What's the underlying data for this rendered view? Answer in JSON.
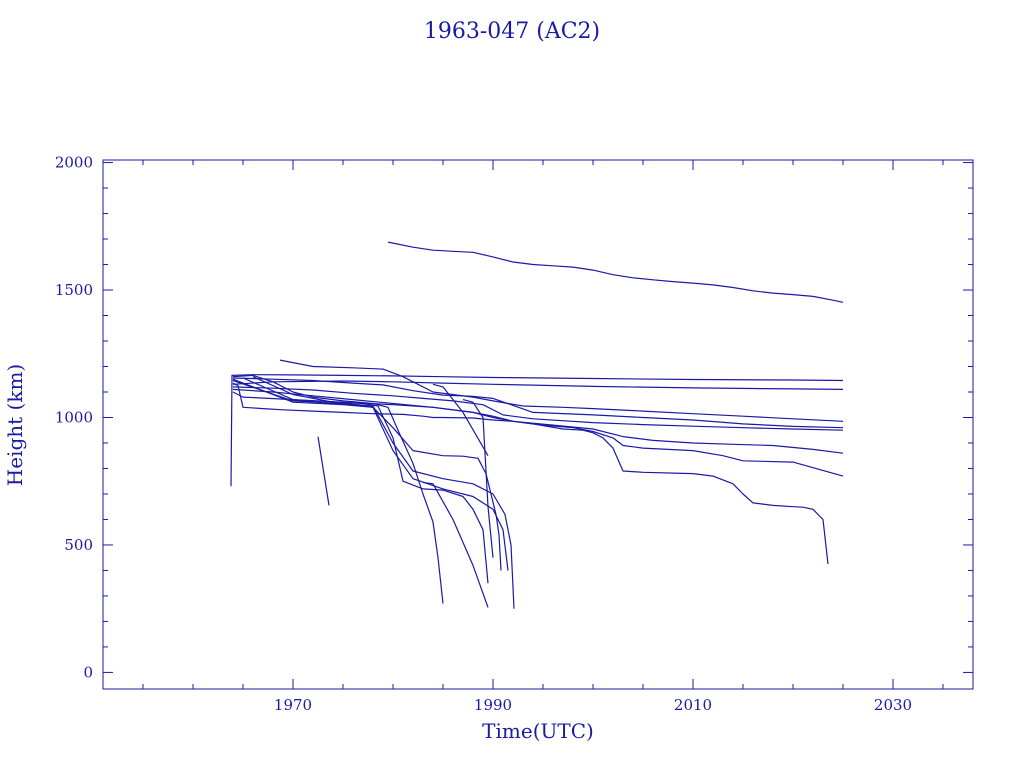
{
  "chart_data": {
    "type": "line",
    "title": "1963-047 (AC2)",
    "xlabel": "Time(UTC)",
    "ylabel": "Height (km)",
    "xlim": [
      1951,
      2038
    ],
    "ylim": [
      -65,
      2010
    ],
    "xticks": [
      1970,
      1990,
      2010,
      2030
    ],
    "yticks": [
      0,
      500,
      1000,
      1500,
      2000
    ],
    "x_minor_step": 5,
    "y_minor_step": 100,
    "grid": false,
    "line_color": "#1a1aa6",
    "series": [
      {
        "x": [
          1979.5,
          1980,
          1982,
          1984,
          1986,
          1988,
          1990,
          1992,
          1994,
          1996,
          1998,
          2000,
          2002,
          2004,
          2006,
          2008,
          2010,
          2012,
          2014,
          2016,
          2018,
          2020,
          2022,
          2024,
          2025
        ],
        "y": [
          1688,
          1684,
          1668,
          1656,
          1652,
          1648,
          1630,
          1610,
          1600,
          1595,
          1590,
          1578,
          1560,
          1548,
          1540,
          1533,
          1527,
          1520,
          1510,
          1497,
          1488,
          1482,
          1475,
          1460,
          1452
        ]
      },
      {
        "x": [
          1963.8,
          1963.9,
          1966,
          1970,
          1975,
          1980,
          1985,
          1990,
          2000,
          2010,
          2020,
          2025
        ],
        "y": [
          730,
          1165,
          1168,
          1167,
          1165,
          1163,
          1160,
          1157,
          1153,
          1149,
          1147,
          1145
        ]
      },
      {
        "x": [
          1964,
          1968,
          1975,
          1980,
          1985,
          1990,
          2000,
          2010,
          2020,
          2025
        ],
        "y": [
          1130,
          1140,
          1143,
          1140,
          1135,
          1130,
          1122,
          1116,
          1112,
          1110
        ]
      },
      {
        "x": [
          1968.7,
          1972,
          1976,
          1979,
          1981,
          1984,
          1988,
          1990,
          1993,
          1997,
          2000,
          2005,
          2010,
          2015,
          2020,
          2025
        ],
        "y": [
          1225,
          1200,
          1195,
          1190,
          1160,
          1100,
          1080,
          1065,
          1045,
          1040,
          1035,
          1025,
          1015,
          1005,
          995,
          985
        ]
      },
      {
        "x": [
          1964,
          1968,
          1972,
          1976,
          1979,
          1982,
          1985,
          1988,
          1990,
          1994,
          2000,
          2005,
          2010,
          2015,
          2020,
          2025
        ],
        "y": [
          1155,
          1150,
          1145,
          1135,
          1128,
          1105,
          1088,
          1083,
          1075,
          1020,
          1010,
          1000,
          990,
          975,
          965,
          960
        ]
      },
      {
        "x": [
          1964,
          1968,
          1972,
          1976,
          1980,
          1983,
          1986,
          1989,
          1991,
          1994,
          2000,
          2005,
          2010,
          2015,
          2020,
          2025
        ],
        "y": [
          1120,
          1115,
          1108,
          1095,
          1085,
          1075,
          1065,
          1050,
          1010,
          995,
          980,
          972,
          966,
          960,
          955,
          950
        ]
      },
      {
        "x": [
          1964,
          1968,
          1972,
          1976,
          1980,
          1984,
          1988,
          1990,
          1992,
          1996,
          2000,
          2003,
          2006,
          2010,
          2014,
          2018,
          2022,
          2025
        ],
        "y": [
          1110,
          1100,
          1085,
          1070,
          1055,
          1040,
          1020,
          1005,
          985,
          970,
          955,
          925,
          910,
          900,
          895,
          890,
          875,
          860
        ]
      },
      {
        "x": [
          1964,
          1965,
          1970,
          1975,
          1980,
          1984,
          1988,
          1990,
          1992,
          1995,
          1998,
          2000,
          2002,
          2003,
          2005,
          2010,
          2013,
          2015,
          2020,
          2025
        ],
        "y": [
          1100,
          1080,
          1070,
          1060,
          1050,
          1040,
          1020,
          1000,
          985,
          970,
          960,
          945,
          920,
          890,
          880,
          870,
          850,
          830,
          825,
          770
        ]
      },
      {
        "x": [
          1964,
          1964.5,
          1965,
          1967,
          1969,
          1972,
          1975,
          1978,
          1981,
          1983,
          1984,
          1985,
          1988,
          1990,
          1992,
          1994,
          1997,
          1999,
          2000,
          2001,
          2002,
          2003,
          2005,
          2010,
          2012,
          2014,
          2015,
          2016,
          2018,
          2020,
          2021,
          2022,
          2023,
          2023.5
        ],
        "y": [
          1135,
          1125,
          1040,
          1035,
          1030,
          1025,
          1020,
          1015,
          1012,
          1005,
          1000,
          1000,
          998,
          990,
          985,
          975,
          955,
          950,
          940,
          920,
          880,
          790,
          785,
          780,
          770,
          740,
          700,
          665,
          655,
          650,
          648,
          640,
          600,
          425
        ]
      },
      {
        "x": [
          1964,
          1966,
          1968,
          1970,
          1972,
          1975,
          1978,
          1979.5,
          1980.5,
          1982,
          1983,
          1984,
          1984.5,
          1985
        ],
        "y": [
          1160,
          1165,
          1140,
          1100,
          1080,
          1065,
          1055,
          1040,
          950,
          820,
          700,
          590,
          450,
          270
        ]
      },
      {
        "x": [
          1966,
          1970,
          1974,
          1977,
          1978.5,
          1980,
          1981,
          1983,
          1985,
          1987,
          1988,
          1989,
          1989.5
        ],
        "y": [
          1160,
          1090,
          1060,
          1055,
          1045,
          920,
          750,
          720,
          715,
          690,
          640,
          560,
          350
        ]
      },
      {
        "x": [
          1965,
          1970,
          1974,
          1977,
          1978,
          1980,
          1982,
          1985,
          1987,
          1988.5,
          1989.3,
          1989.8,
          1990.3,
          1990.6,
          1990.8
        ],
        "y": [
          1155,
          1070,
          1055,
          1045,
          1040,
          960,
          870,
          850,
          848,
          840,
          780,
          700,
          620,
          540,
          400
        ]
      },
      {
        "x": [
          1964,
          1970,
          1975,
          1978,
          1980,
          1982,
          1985,
          1988,
          1990,
          1991,
          1991.5
        ],
        "y": [
          1150,
          1060,
          1050,
          1040,
          870,
          760,
          720,
          690,
          640,
          560,
          400
        ]
      },
      {
        "x": [
          1964,
          1970,
          1975,
          1978,
          1980,
          1982,
          1985,
          1988,
          1990,
          1991.2,
          1991.8,
          1992.1
        ],
        "y": [
          1145,
          1065,
          1055,
          1045,
          900,
          790,
          760,
          740,
          700,
          620,
          500,
          250
        ]
      },
      {
        "x": [
          1984,
          1985,
          1987,
          1989.5
        ],
        "y": [
          1130,
          1120,
          1020,
          850
        ]
      },
      {
        "x": [
          1987,
          1988,
          1989,
          1989.5,
          1990
        ],
        "y": [
          1070,
          1060,
          1000,
          650,
          450
        ]
      },
      {
        "x": [
          1983,
          1984,
          1986,
          1988,
          1989.5
        ],
        "y": [
          745,
          740,
          600,
          420,
          255
        ]
      },
      {
        "x": [
          1972.5,
          1973.6
        ],
        "y": [
          925,
          655
        ]
      }
    ]
  }
}
